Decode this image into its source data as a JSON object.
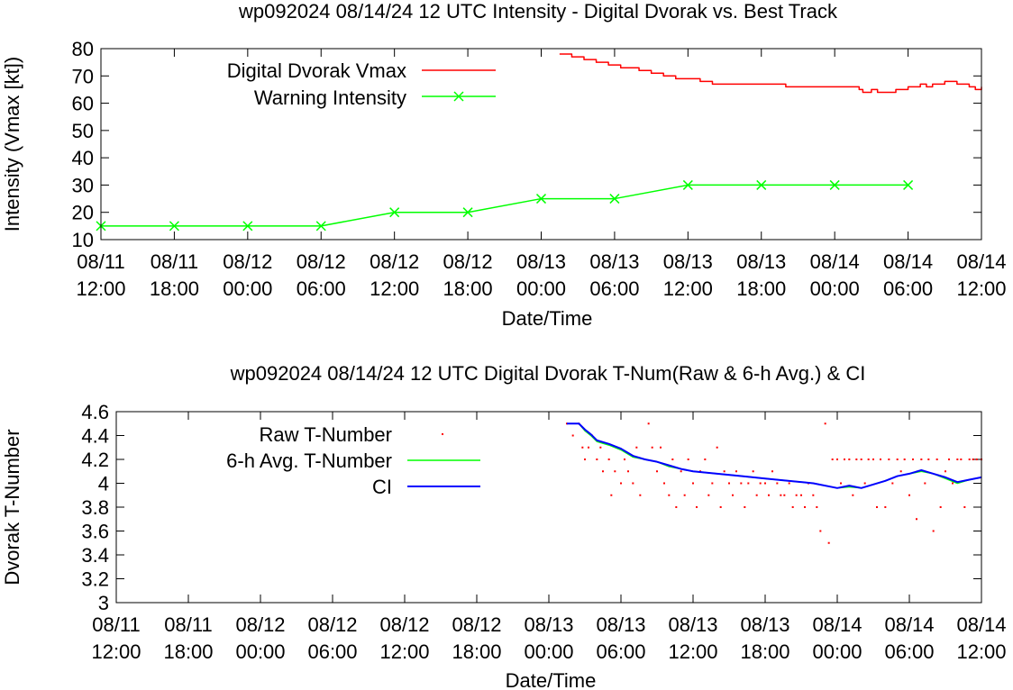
{
  "chart_data": [
    {
      "type": "line",
      "title": "wp092024 08/14/24  12 UTC Intensity - Digital Dvorak vs. Best Track",
      "xlabel": "Date/Time",
      "ylabel": "Intensity (Vmax [kt])",
      "ylim": [
        10,
        80
      ],
      "xlim_hours": [
        0,
        72
      ],
      "yticks": [
        "10",
        "20",
        "30",
        "40",
        "50",
        "60",
        "70",
        "80"
      ],
      "xticks": [
        {
          "date": "08/11",
          "time": "12:00"
        },
        {
          "date": "08/11",
          "time": "18:00"
        },
        {
          "date": "08/12",
          "time": "00:00"
        },
        {
          "date": "08/12",
          "time": "06:00"
        },
        {
          "date": "08/12",
          "time": "12:00"
        },
        {
          "date": "08/12",
          "time": "18:00"
        },
        {
          "date": "08/13",
          "time": "00:00"
        },
        {
          "date": "08/13",
          "time": "06:00"
        },
        {
          "date": "08/13",
          "time": "12:00"
        },
        {
          "date": "08/13",
          "time": "18:00"
        },
        {
          "date": "08/14",
          "time": "00:00"
        },
        {
          "date": "08/14",
          "time": "06:00"
        },
        {
          "date": "08/14",
          "time": "12:00"
        }
      ],
      "series": [
        {
          "name": "Digital Dvorak Vmax",
          "color": "#ff0000",
          "style": "line",
          "x": [
            37.5,
            38.5,
            39,
            39.5,
            40,
            40.5,
            41,
            41.5,
            42,
            42.5,
            43,
            44,
            45,
            46,
            47,
            48,
            49,
            50,
            52,
            54,
            56,
            58,
            60,
            61,
            62,
            62.3,
            62.6,
            63,
            63.5,
            64,
            65,
            65.5,
            66,
            66.5,
            67,
            67.5,
            68,
            69,
            70,
            70.5,
            71,
            71.5,
            72
          ],
          "y": [
            78,
            77,
            77,
            76,
            76,
            75,
            75,
            74,
            74,
            73,
            73,
            72,
            71,
            70,
            69,
            69,
            68,
            67,
            67,
            67,
            66,
            66,
            66,
            66,
            65,
            64,
            64,
            65,
            64,
            64,
            65,
            65,
            66,
            66,
            67,
            66,
            67,
            68,
            67,
            67,
            66,
            65,
            66
          ]
        },
        {
          "name": "Warning Intensity",
          "color": "#00ff00",
          "style": "linespoints",
          "x": [
            0,
            6,
            12,
            18,
            24,
            30,
            36,
            42,
            48,
            54,
            60,
            66
          ],
          "y": [
            15,
            15,
            15,
            15,
            20,
            20,
            25,
            25,
            30,
            30,
            30,
            30
          ]
        }
      ],
      "legend": "top-left"
    },
    {
      "type": "line",
      "title": "wp092024 08/14/24  12 UTC Digital Dvorak T-Num(Raw & 6-h Avg.) & CI",
      "xlabel": "Date/Time",
      "ylabel": "Dvorak T-Number",
      "ylim": [
        3,
        4.6
      ],
      "xlim_hours": [
        0,
        72
      ],
      "yticks": [
        "3",
        "3.2",
        "3.4",
        "3.6",
        "3.8",
        "4",
        "4.2",
        "4.4",
        "4.6"
      ],
      "xticks": [
        {
          "date": "08/11",
          "time": "12:00"
        },
        {
          "date": "08/11",
          "time": "18:00"
        },
        {
          "date": "08/12",
          "time": "00:00"
        },
        {
          "date": "08/12",
          "time": "06:00"
        },
        {
          "date": "08/12",
          "time": "12:00"
        },
        {
          "date": "08/12",
          "time": "18:00"
        },
        {
          "date": "08/13",
          "time": "00:00"
        },
        {
          "date": "08/13",
          "time": "06:00"
        },
        {
          "date": "08/13",
          "time": "12:00"
        },
        {
          "date": "08/13",
          "time": "18:00"
        },
        {
          "date": "08/14",
          "time": "00:00"
        },
        {
          "date": "08/14",
          "time": "06:00"
        },
        {
          "date": "08/14",
          "time": "12:00"
        }
      ],
      "series": [
        {
          "name": "Raw T-Number",
          "color": "#ff0000",
          "style": "dots",
          "x": [
            37.5,
            38,
            38.5,
            38.8,
            39,
            39.3,
            39.6,
            40,
            40.3,
            40.5,
            41,
            41.2,
            41.5,
            42,
            42.3,
            42.6,
            43,
            43.3,
            43.6,
            44,
            44.3,
            44.6,
            45,
            45.3,
            45.6,
            46,
            46.3,
            46.6,
            47,
            47.3,
            47.6,
            48,
            48.3,
            48.6,
            49,
            49.3,
            49.6,
            50,
            50.3,
            50.6,
            51,
            51.3,
            51.6,
            52,
            52.3,
            52.6,
            53,
            53.3,
            53.6,
            54,
            54.3,
            54.6,
            55,
            55.3,
            55.6,
            56,
            56.3,
            56.6,
            57,
            57.3,
            57.6,
            58,
            58.3,
            58.6,
            59,
            59.3,
            59.6,
            60,
            60.3,
            60.6,
            61,
            61.3,
            61.6,
            62,
            62.3,
            62.6,
            63,
            63.3,
            63.6,
            64,
            64.3,
            64.6,
            65,
            65.3,
            65.6,
            66,
            66.3,
            66.6,
            67,
            67.3,
            67.6,
            68,
            68.3,
            68.6,
            69,
            69.3,
            69.6,
            70,
            70.3,
            70.6,
            71,
            71.3,
            71.6,
            72
          ],
          "y": [
            4.5,
            4.4,
            4.5,
            4.3,
            4.2,
            4.3,
            4.4,
            4.2,
            4.3,
            4.1,
            4.2,
            3.9,
            4.1,
            4.0,
            4.2,
            4.1,
            4.0,
            4.3,
            3.9,
            4.2,
            4.5,
            4.3,
            4.1,
            4.3,
            4.0,
            3.9,
            4.2,
            3.8,
            4.1,
            3.9,
            4.2,
            4.0,
            3.8,
            4.1,
            4.2,
            3.9,
            4.0,
            4.3,
            3.8,
            4.1,
            4.0,
            3.9,
            4.1,
            4.0,
            3.8,
            4.0,
            4.1,
            3.9,
            4.0,
            4.0,
            3.9,
            4.1,
            4.0,
            3.9,
            3.9,
            4.0,
            3.8,
            3.9,
            3.9,
            3.8,
            4.0,
            3.9,
            3.8,
            3.6,
            4.5,
            3.5,
            4.2,
            4.2,
            4.0,
            4.2,
            4.2,
            3.9,
            4.2,
            4.2,
            4.0,
            4.2,
            4.2,
            3.8,
            4.2,
            3.8,
            4.2,
            4.0,
            4.2,
            4.1,
            4.2,
            3.9,
            4.2,
            3.7,
            4.2,
            4.0,
            4.2,
            3.6,
            4.2,
            3.8,
            4.1,
            4.2,
            4.0,
            4.2,
            4.2,
            3.8,
            4.2,
            4.2,
            4.2,
            4.2
          ]
        },
        {
          "name": "6-h Avg. T-Number",
          "color": "#00ff00",
          "style": "line",
          "x": [
            37.5,
            38.5,
            39,
            39.5,
            40,
            41,
            42,
            43,
            44,
            45,
            46,
            47,
            48,
            50,
            52,
            54,
            56,
            58,
            60,
            61,
            62,
            63,
            64,
            65,
            66,
            67,
            68,
            69,
            70,
            71,
            72
          ],
          "y": [
            4.5,
            4.5,
            4.44,
            4.4,
            4.35,
            4.32,
            4.28,
            4.22,
            4.2,
            4.18,
            4.14,
            4.12,
            4.1,
            4.08,
            4.06,
            4.04,
            4.02,
            4.0,
            3.96,
            3.97,
            3.96,
            3.99,
            4.02,
            4.06,
            4.08,
            4.1,
            4.08,
            4.04,
            4.0,
            4.03,
            4.05
          ]
        },
        {
          "name": "CI",
          "color": "#0000ff",
          "style": "line",
          "x": [
            37.5,
            38.5,
            39,
            39.5,
            40,
            41,
            42,
            43,
            44,
            45,
            46,
            47,
            48,
            50,
            52,
            54,
            56,
            58,
            60,
            61,
            62,
            63,
            64,
            65,
            66,
            67,
            68,
            69,
            70,
            71,
            72
          ],
          "y": [
            4.5,
            4.5,
            4.45,
            4.41,
            4.36,
            4.33,
            4.29,
            4.23,
            4.2,
            4.18,
            4.15,
            4.12,
            4.1,
            4.08,
            4.06,
            4.04,
            4.02,
            4.0,
            3.96,
            3.98,
            3.96,
            3.99,
            4.02,
            4.06,
            4.08,
            4.11,
            4.08,
            4.05,
            4.01,
            4.03,
            4.05
          ]
        }
      ],
      "legend": "top-left"
    }
  ]
}
